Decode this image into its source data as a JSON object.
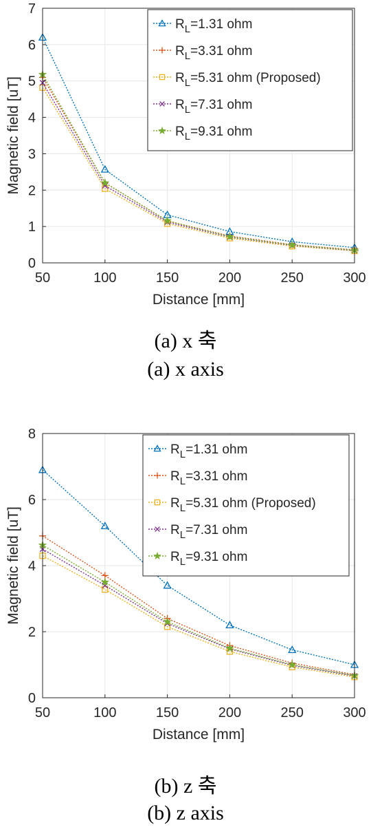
{
  "chart_data": [
    {
      "type": "line",
      "caption_ko": "(a)  x  축",
      "caption_en": "(a)  x  axis",
      "xlabel": "Distance [mm]",
      "ylabel": "Magnetic field [uT]",
      "x": [
        50,
        100,
        150,
        200,
        250,
        300
      ],
      "xlim": [
        50,
        300
      ],
      "ylim": [
        0,
        7
      ],
      "xticks": [
        "50",
        "100",
        "150",
        "200",
        "250",
        "300"
      ],
      "yticks": [
        "0",
        "1",
        "2",
        "3",
        "4",
        "5",
        "6",
        "7"
      ],
      "grid": true,
      "legend_position": "top-right",
      "series": [
        {
          "name_main": "R",
          "name_sub": "L",
          "name_rest": "=1.31 ohm",
          "color": "#0072BD",
          "marker": "triangle",
          "values": [
            6.2,
            2.57,
            1.32,
            0.86,
            0.58,
            0.42
          ]
        },
        {
          "name_main": "R",
          "name_sub": "L",
          "name_rest": "=3.31 ohm",
          "color": "#D95319",
          "marker": "plus",
          "values": [
            5.1,
            2.2,
            1.15,
            0.74,
            0.5,
            0.36
          ]
        },
        {
          "name_main": "R",
          "name_sub": "L",
          "name_rest": "=5.31 ohm (Proposed)",
          "color": "#EDB120",
          "marker": "square",
          "values": [
            4.82,
            2.04,
            1.08,
            0.68,
            0.46,
            0.33
          ]
        },
        {
          "name_main": "R",
          "name_sub": "L",
          "name_rest": "=7.31 ohm",
          "color": "#7E2F8E",
          "marker": "x",
          "values": [
            4.95,
            2.12,
            1.12,
            0.71,
            0.48,
            0.34
          ]
        },
        {
          "name_main": "R",
          "name_sub": "L",
          "name_rest": "=9.31 ohm",
          "color": "#77AC30",
          "marker": "star",
          "values": [
            5.18,
            2.2,
            1.16,
            0.72,
            0.49,
            0.35
          ]
        }
      ]
    },
    {
      "type": "line",
      "caption_ko": "(b)  z  축",
      "caption_en": "(b)  z  axis",
      "xlabel": "Distance [mm]",
      "ylabel": "Magnetic field [uT]",
      "x": [
        50,
        100,
        150,
        200,
        250,
        300
      ],
      "xlim": [
        50,
        300
      ],
      "ylim": [
        0,
        8
      ],
      "xticks": [
        "50",
        "100",
        "150",
        "200",
        "250",
        "300"
      ],
      "yticks": [
        "0",
        "2",
        "4",
        "6",
        "8"
      ],
      "grid": true,
      "legend_position": "top-right",
      "series": [
        {
          "name_main": "R",
          "name_sub": "L",
          "name_rest": "=1.31 ohm",
          "color": "#0072BD",
          "marker": "triangle",
          "values": [
            6.9,
            5.2,
            3.4,
            2.2,
            1.45,
            1.0
          ]
        },
        {
          "name_main": "R",
          "name_sub": "L",
          "name_rest": "=3.31 ohm",
          "color": "#D95319",
          "marker": "plus",
          "values": [
            4.9,
            3.7,
            2.4,
            1.58,
            1.05,
            0.7
          ]
        },
        {
          "name_main": "R",
          "name_sub": "L",
          "name_rest": "=5.31 ohm (Proposed)",
          "color": "#EDB120",
          "marker": "square",
          "values": [
            4.3,
            3.28,
            2.15,
            1.4,
            0.93,
            0.63
          ]
        },
        {
          "name_main": "R",
          "name_sub": "L",
          "name_rest": "=7.31 ohm",
          "color": "#7E2F8E",
          "marker": "x",
          "values": [
            4.5,
            3.4,
            2.25,
            1.48,
            0.98,
            0.66
          ]
        },
        {
          "name_main": "R",
          "name_sub": "L",
          "name_rest": "=9.31 ohm",
          "color": "#77AC30",
          "marker": "star",
          "values": [
            4.62,
            3.5,
            2.3,
            1.5,
            1.0,
            0.67
          ]
        }
      ]
    }
  ]
}
